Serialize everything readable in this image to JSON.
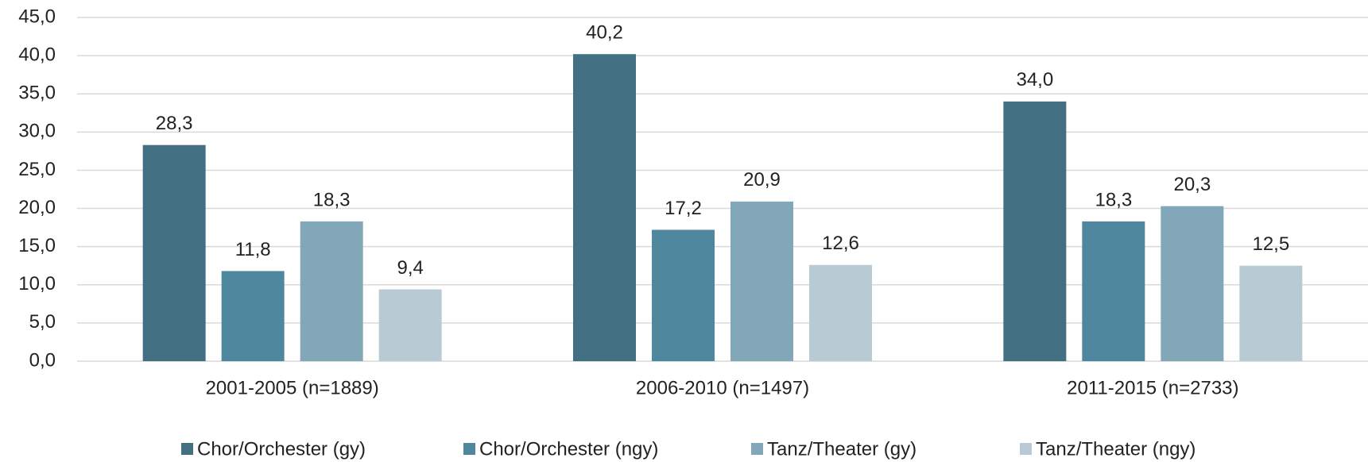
{
  "chart_data": {
    "type": "bar",
    "categories": [
      "2001-2005 (n=1889)",
      "2006-2010 (n=1497)",
      "2011-2015 (n=2733)"
    ],
    "series": [
      {
        "name": "Chor/Orchester (gy)",
        "color": "#426f82",
        "values": [
          28.3,
          40.2,
          34.0
        ],
        "value_labels": [
          "28,3",
          "40,2",
          "34,0"
        ]
      },
      {
        "name": "Chor/Orchester (ngy)",
        "color": "#4f889e",
        "values": [
          11.8,
          17.2,
          18.3
        ],
        "value_labels": [
          "11,8",
          "17,2",
          "18,3"
        ]
      },
      {
        "name": "Tanz/Theater (gy)",
        "color": "#82a7b8",
        "values": [
          18.3,
          20.9,
          20.3
        ],
        "value_labels": [
          "18,3",
          "20,9",
          "20,3"
        ]
      },
      {
        "name": "Tanz/Theater (ngy)",
        "color": "#b8cbd4",
        "values": [
          9.4,
          12.6,
          12.5
        ],
        "value_labels": [
          "9,4",
          "12,6",
          "12,5"
        ]
      }
    ],
    "ylim": [
      0,
      45
    ],
    "yticks": [
      {
        "value": 0,
        "label": "0,0"
      },
      {
        "value": 5,
        "label": "5,0"
      },
      {
        "value": 10,
        "label": "10,0"
      },
      {
        "value": 15,
        "label": "15,0"
      },
      {
        "value": 20,
        "label": "20,0"
      },
      {
        "value": 25,
        "label": "25,0"
      },
      {
        "value": 30,
        "label": "30,0"
      },
      {
        "value": 35,
        "label": "35,0"
      },
      {
        "value": 40,
        "label": "40,0"
      },
      {
        "value": 45,
        "label": "45,0"
      }
    ],
    "grid": true,
    "legend": "bottom"
  }
}
